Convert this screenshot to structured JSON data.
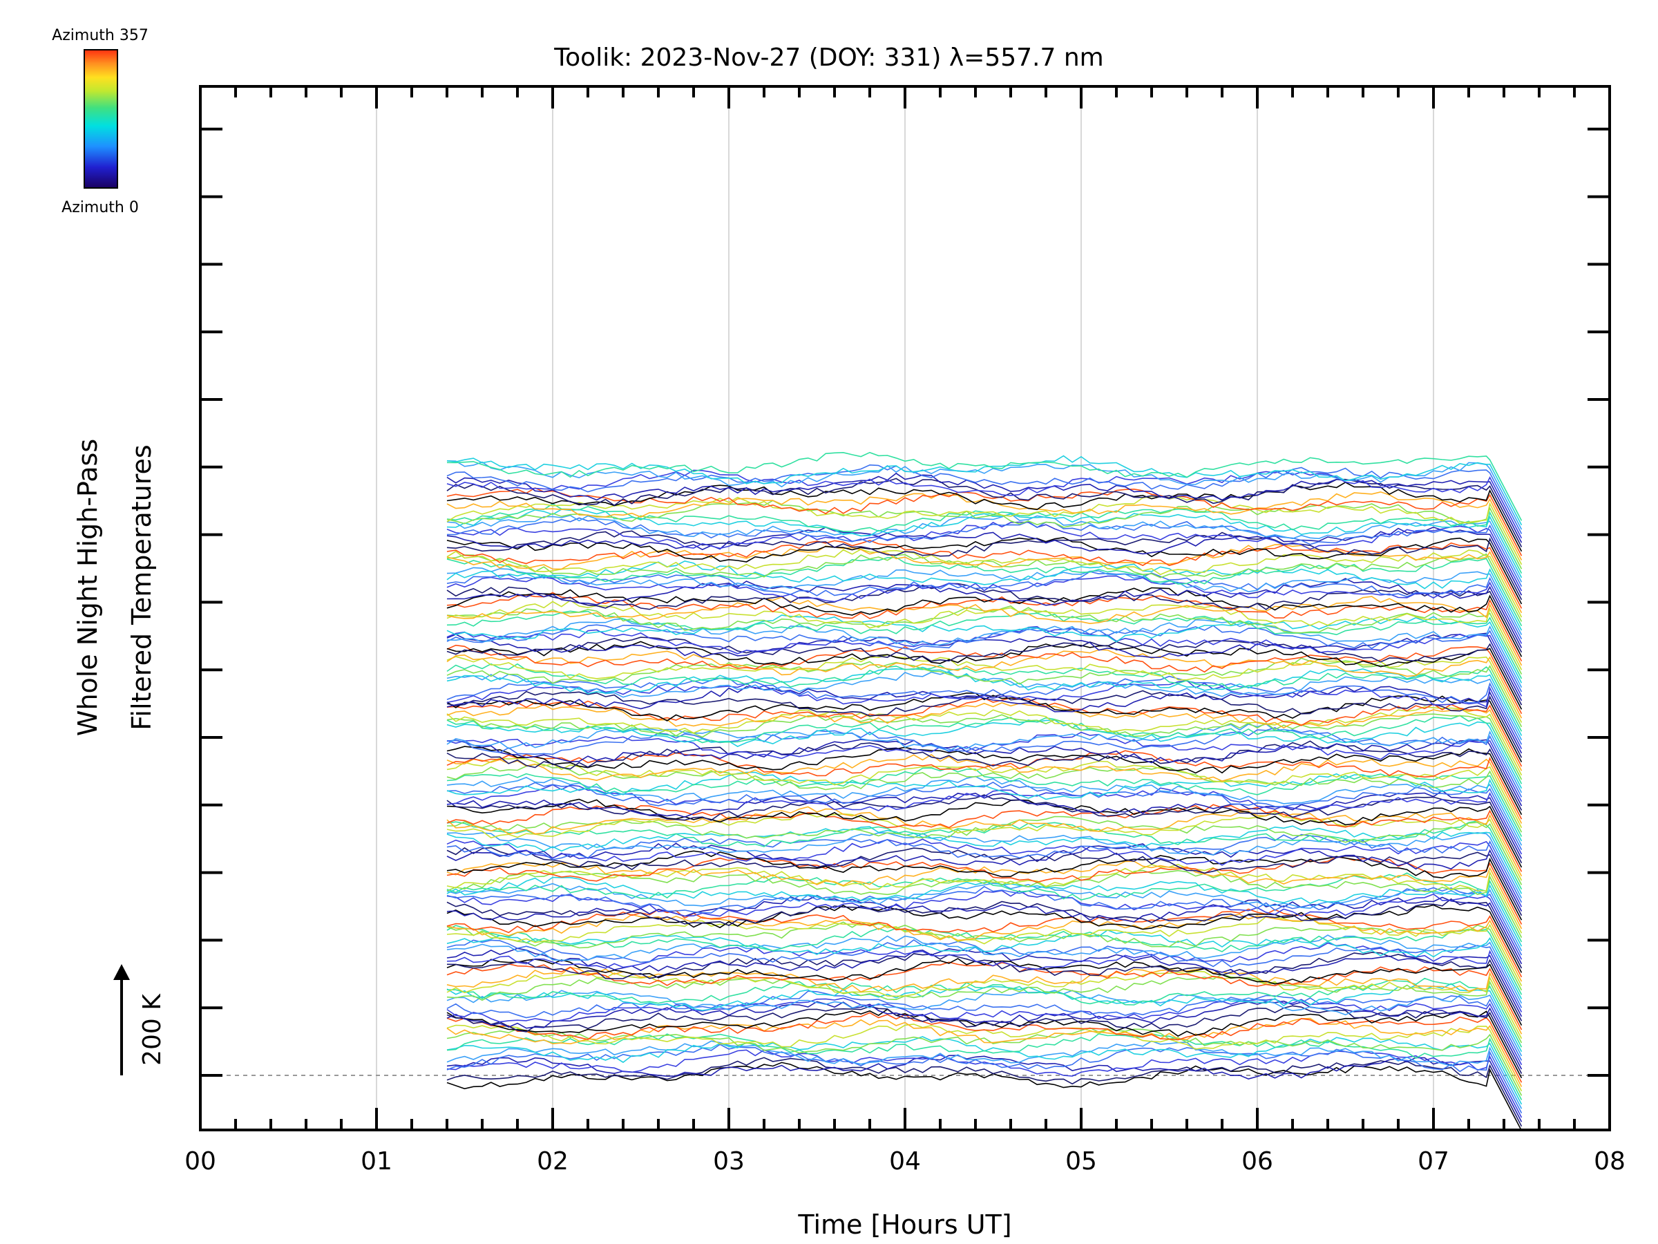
{
  "chart_data": {
    "type": "line",
    "title": "Toolik: 2023-Nov-27 (DOY: 331) λ=557.7 nm",
    "xlabel": "Time [Hours UT]",
    "ylabel_line1": "Whole Night High-Pass",
    "ylabel_line2": "Filtered Temperatures",
    "xlim": [
      0,
      8
    ],
    "x_tick_labels": [
      "00",
      "01",
      "02",
      "03",
      "04",
      "05",
      "06",
      "07",
      "08"
    ],
    "x_data_range": [
      1.4,
      7.5
    ],
    "vertical_grid": true,
    "baseline_dashed": true,
    "scale_bar_label": "200 K",
    "colorbar": {
      "top_label": "Azimuth 357",
      "bottom_label": "Azimuth 0",
      "colors": [
        "#1a0060",
        "#2020d0",
        "#1e90ff",
        "#00e0e0",
        "#40e080",
        "#c0e830",
        "#ffe020",
        "#ff9020",
        "#ff3010"
      ]
    },
    "series_count": 140,
    "traces_per_scan": 12,
    "trace_offset_K": 16,
    "scan_color_order": [
      "black",
      "navy",
      "blue",
      "royalblue",
      "cornflower",
      "deepskyblue",
      "turquoise",
      "springgreen",
      "yellowgreen",
      "gold",
      "orange",
      "orangered"
    ]
  }
}
